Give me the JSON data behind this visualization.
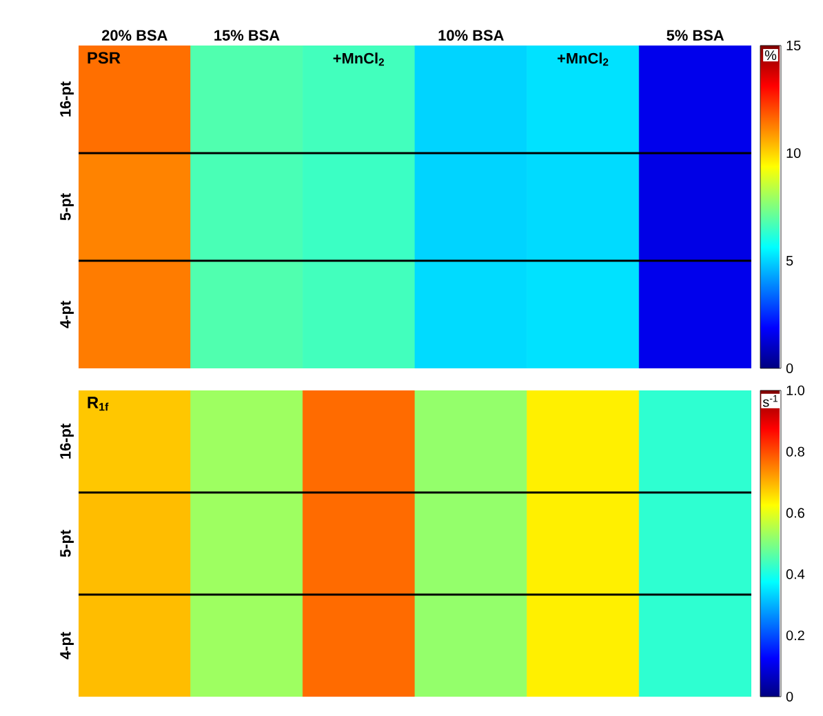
{
  "chart_data": [
    {
      "type": "heatmap",
      "title": "**PSR**",
      "clabel": "%",
      "categories": [
        "20% BSA",
        "15% BSA",
        null,
        "10% BSA",
        null,
        "5% BSA"
      ],
      "y_categories": [
        "16-pt",
        "5-pt",
        "4-pt"
      ],
      "cells": [
        [
          11.5,
          6.8,
          6.6,
          5.0,
          5.2,
          1.6
        ],
        [
          11.2,
          6.7,
          6.5,
          5.0,
          5.1,
          1.5
        ],
        [
          11.3,
          6.8,
          6.6,
          5.1,
          5.2,
          1.6
        ]
      ],
      "clim": [
        0,
        15
      ],
      "cticks": [
        0,
        5,
        10,
        15
      ],
      "annotations": [
        "+MnCl$_{2}$",
        "+MnCl$_{2}$"
      ]
    },
    {
      "type": "heatmap",
      "title": "**R$_{1f}$**",
      "clabel": "s$^{-1}$",
      "categories": [
        null,
        null,
        null,
        null,
        null,
        null
      ],
      "y_categories": [
        "16-pt",
        "5-pt",
        "4-pt"
      ],
      "cells": [
        [
          0.68,
          0.53,
          0.77,
          0.52,
          0.64,
          0.42
        ],
        [
          0.69,
          0.53,
          0.77,
          0.52,
          0.64,
          0.42
        ],
        [
          0.69,
          0.53,
          0.77,
          0.52,
          0.64,
          0.42
        ]
      ],
      "clim": [
        0,
        1
      ],
      "cticks": [
        0,
        0.2,
        0.4,
        0.6,
        0.8,
        {
          "value": 1,
          "label": "1.0"
        }
      ],
      "tick_labels": "y"
    }
  ]
}
